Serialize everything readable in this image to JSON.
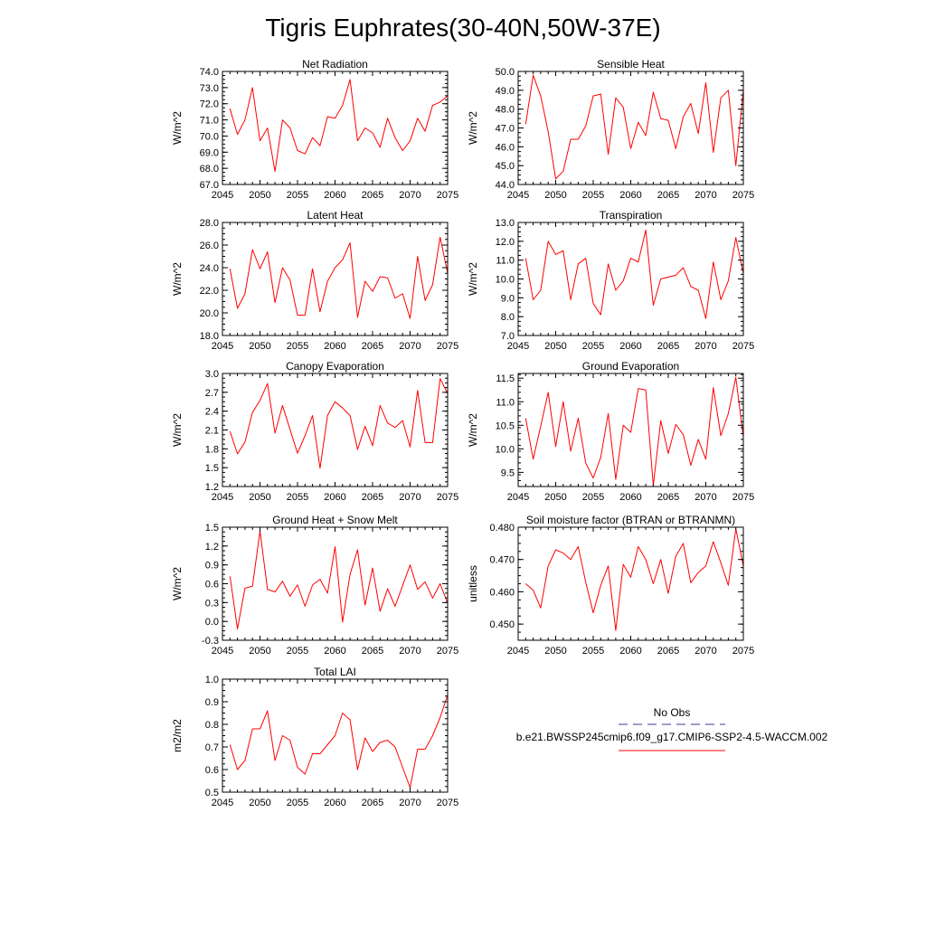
{
  "title": "Tigris Euphrates(30-40N,50W-37E)",
  "legend": {
    "obs_label": "No Obs",
    "case_label": "b.e21.BWSSP245cmip6.f09_g17.CMIP6-SSP2-4.5-WACCM.002",
    "obs_color": "#3a3a8c",
    "case_color": "#ff0000"
  },
  "chart_data": [
    {
      "type": "line",
      "title": "Net Radiation",
      "ylabel": "W/m^2",
      "xlim": [
        2045,
        2075
      ],
      "ylim": [
        67.0,
        74.0
      ],
      "yticks": [
        67.0,
        68.0,
        69.0,
        70.0,
        71.0,
        72.0,
        73.0,
        74.0
      ],
      "ytick_labels": [
        "67.0",
        "68.0",
        "69.0",
        "70.0",
        "71.0",
        "72.0",
        "73.0",
        "74.0"
      ],
      "xticks": [
        2045,
        2050,
        2055,
        2060,
        2065,
        2070,
        2075
      ],
      "x": [
        2046,
        2047,
        2048,
        2049,
        2050,
        2051,
        2052,
        2053,
        2054,
        2055,
        2056,
        2057,
        2058,
        2059,
        2060,
        2061,
        2062,
        2063,
        2064,
        2065,
        2066,
        2067,
        2068,
        2069,
        2070,
        2071,
        2072,
        2073,
        2074,
        2075
      ],
      "series": [
        {
          "values": [
            71.7,
            70.1,
            71.0,
            73.0,
            69.7,
            70.5,
            67.8,
            71.0,
            70.5,
            69.1,
            68.9,
            69.9,
            69.4,
            71.2,
            71.1,
            71.9,
            73.5,
            69.7,
            70.5,
            70.2,
            69.3,
            71.1,
            69.9,
            69.1,
            69.7,
            71.1,
            70.3,
            71.9,
            72.1,
            72.5
          ]
        }
      ]
    },
    {
      "type": "line",
      "title": "Sensible Heat",
      "ylabel": "W/m^2",
      "xlim": [
        2045,
        2075
      ],
      "ylim": [
        44.0,
        50.0
      ],
      "yticks": [
        44.0,
        45.0,
        46.0,
        47.0,
        48.0,
        49.0,
        50.0
      ],
      "ytick_labels": [
        "44.0",
        "45.0",
        "46.0",
        "47.0",
        "48.0",
        "49.0",
        "50.0"
      ],
      "xticks": [
        2045,
        2050,
        2055,
        2060,
        2065,
        2070,
        2075
      ],
      "x": [
        2046,
        2047,
        2048,
        2049,
        2050,
        2051,
        2052,
        2053,
        2054,
        2055,
        2056,
        2057,
        2058,
        2059,
        2060,
        2061,
        2062,
        2063,
        2064,
        2065,
        2066,
        2067,
        2068,
        2069,
        2070,
        2071,
        2072,
        2073,
        2074,
        2075
      ],
      "series": [
        {
          "values": [
            47.2,
            49.8,
            48.7,
            46.8,
            44.3,
            44.7,
            46.4,
            46.4,
            47.1,
            48.7,
            48.8,
            45.6,
            48.6,
            48.1,
            45.9,
            47.3,
            46.6,
            48.9,
            47.5,
            47.4,
            45.9,
            47.6,
            48.3,
            46.7,
            49.4,
            45.7,
            48.6,
            49.0,
            45.0,
            49.0
          ]
        }
      ]
    },
    {
      "type": "line",
      "title": "Latent Heat",
      "ylabel": "W/m^2",
      "xlim": [
        2045,
        2075
      ],
      "ylim": [
        18.0,
        28.0
      ],
      "yticks": [
        18.0,
        20.0,
        22.0,
        24.0,
        26.0,
        28.0
      ],
      "ytick_labels": [
        "18.0",
        "20.0",
        "22.0",
        "24.0",
        "26.0",
        "28.0"
      ],
      "xticks": [
        2045,
        2050,
        2055,
        2060,
        2065,
        2070,
        2075
      ],
      "x": [
        2046,
        2047,
        2048,
        2049,
        2050,
        2051,
        2052,
        2053,
        2054,
        2055,
        2056,
        2057,
        2058,
        2059,
        2060,
        2061,
        2062,
        2063,
        2064,
        2065,
        2066,
        2067,
        2068,
        2069,
        2070,
        2071,
        2072,
        2073,
        2074,
        2075
      ],
      "series": [
        {
          "values": [
            23.9,
            20.4,
            21.7,
            25.6,
            23.9,
            25.4,
            20.9,
            24.0,
            22.9,
            19.8,
            19.8,
            23.9,
            20.1,
            22.8,
            24.0,
            24.7,
            26.2,
            19.6,
            22.8,
            21.9,
            23.2,
            23.1,
            21.3,
            21.7,
            19.5,
            25.0,
            21.1,
            22.5,
            26.7,
            23.5
          ]
        }
      ]
    },
    {
      "type": "line",
      "title": "Transpiration",
      "ylabel": "W/m^2",
      "xlim": [
        2045,
        2075
      ],
      "ylim": [
        7.0,
        13.0
      ],
      "yticks": [
        7.0,
        8.0,
        9.0,
        10.0,
        11.0,
        12.0,
        13.0
      ],
      "ytick_labels": [
        "7.0",
        "8.0",
        "9.0",
        "10.0",
        "11.0",
        "12.0",
        "13.0"
      ],
      "xticks": [
        2045,
        2050,
        2055,
        2060,
        2065,
        2070,
        2075
      ],
      "x": [
        2046,
        2047,
        2048,
        2049,
        2050,
        2051,
        2052,
        2053,
        2054,
        2055,
        2056,
        2057,
        2058,
        2059,
        2060,
        2061,
        2062,
        2063,
        2064,
        2065,
        2066,
        2067,
        2068,
        2069,
        2070,
        2071,
        2072,
        2073,
        2074,
        2075
      ],
      "series": [
        {
          "values": [
            11.1,
            8.9,
            9.4,
            12.0,
            11.3,
            11.5,
            8.9,
            10.8,
            11.1,
            8.7,
            8.1,
            10.8,
            9.4,
            9.9,
            11.1,
            10.9,
            12.6,
            8.6,
            10.0,
            10.1,
            10.2,
            10.6,
            9.6,
            9.4,
            7.9,
            10.9,
            8.9,
            9.9,
            12.2,
            10.3
          ]
        }
      ]
    },
    {
      "type": "line",
      "title": "Canopy Evaporation",
      "ylabel": "W/m^2",
      "xlim": [
        2045,
        2075
      ],
      "ylim": [
        1.2,
        3.0
      ],
      "yticks": [
        1.2,
        1.5,
        1.8,
        2.1,
        2.4,
        2.7,
        3.0
      ],
      "ytick_labels": [
        "1.2",
        "1.5",
        "1.8",
        "2.1",
        "2.4",
        "2.7",
        "3.0"
      ],
      "xticks": [
        2045,
        2050,
        2055,
        2060,
        2065,
        2070,
        2075
      ],
      "x": [
        2046,
        2047,
        2048,
        2049,
        2050,
        2051,
        2052,
        2053,
        2054,
        2055,
        2056,
        2057,
        2058,
        2059,
        2060,
        2061,
        2062,
        2063,
        2064,
        2065,
        2066,
        2067,
        2068,
        2069,
        2070,
        2071,
        2072,
        2073,
        2074,
        2075
      ],
      "series": [
        {
          "values": [
            2.08,
            1.72,
            1.91,
            2.38,
            2.57,
            2.84,
            2.05,
            2.49,
            2.11,
            1.73,
            2.01,
            2.33,
            1.49,
            2.33,
            2.55,
            2.45,
            2.33,
            1.79,
            2.16,
            1.85,
            2.49,
            2.21,
            2.14,
            2.25,
            1.83,
            2.73,
            1.9,
            1.9,
            2.92,
            2.68
          ]
        }
      ]
    },
    {
      "type": "line",
      "title": "Ground Evaporation",
      "ylabel": "W/m^2",
      "xlim": [
        2045,
        2075
      ],
      "ylim": [
        9.2,
        11.6
      ],
      "yticks": [
        9.5,
        10.0,
        10.5,
        11.0,
        11.5
      ],
      "ytick_labels": [
        "9.5",
        "10.0",
        "10.5",
        "11.0",
        "11.5"
      ],
      "xticks": [
        2045,
        2050,
        2055,
        2060,
        2065,
        2070,
        2075
      ],
      "x": [
        2046,
        2047,
        2048,
        2049,
        2050,
        2051,
        2052,
        2053,
        2054,
        2055,
        2056,
        2057,
        2058,
        2059,
        2060,
        2061,
        2062,
        2063,
        2064,
        2065,
        2066,
        2067,
        2068,
        2069,
        2070,
        2071,
        2072,
        2073,
        2074,
        2075
      ],
      "series": [
        {
          "values": [
            10.65,
            9.78,
            10.48,
            11.2,
            10.05,
            11.0,
            9.95,
            10.65,
            9.7,
            9.38,
            9.82,
            10.75,
            9.35,
            10.5,
            10.35,
            11.28,
            11.25,
            9.22,
            10.6,
            9.9,
            10.52,
            10.3,
            9.65,
            10.2,
            9.78,
            11.3,
            10.28,
            10.75,
            11.52,
            10.25
          ]
        }
      ]
    },
    {
      "type": "line",
      "title": "Ground Heat + Snow Melt",
      "ylabel": "W/m^2",
      "xlim": [
        2045,
        2075
      ],
      "ylim": [
        -0.3,
        1.5
      ],
      "yticks": [
        -0.3,
        0.0,
        0.3,
        0.6,
        0.9,
        1.2,
        1.5
      ],
      "ytick_labels": [
        "-0.3",
        "0.0",
        "0.3",
        "0.6",
        "0.9",
        "1.2",
        "1.5"
      ],
      "xticks": [
        2045,
        2050,
        2055,
        2060,
        2065,
        2070,
        2075
      ],
      "x": [
        2046,
        2047,
        2048,
        2049,
        2050,
        2051,
        2052,
        2053,
        2054,
        2055,
        2056,
        2057,
        2058,
        2059,
        2060,
        2061,
        2062,
        2063,
        2064,
        2065,
        2066,
        2067,
        2068,
        2069,
        2070,
        2071,
        2072,
        2073,
        2074,
        2075
      ],
      "series": [
        {
          "values": [
            0.72,
            -0.12,
            0.53,
            0.56,
            1.44,
            0.51,
            0.47,
            0.64,
            0.4,
            0.58,
            0.24,
            0.58,
            0.67,
            0.45,
            1.19,
            -0.01,
            0.75,
            1.14,
            0.26,
            0.85,
            0.16,
            0.52,
            0.24,
            0.57,
            0.9,
            0.51,
            0.63,
            0.37,
            0.6,
            0.29
          ]
        }
      ]
    },
    {
      "type": "line",
      "title": "Soil moisture factor (BTRAN or BTRANMN)",
      "ylabel": "unitless",
      "xlim": [
        2045,
        2075
      ],
      "ylim": [
        0.445,
        0.48
      ],
      "yticks": [
        0.45,
        0.46,
        0.47,
        0.48
      ],
      "ytick_labels": [
        "0.450",
        "0.460",
        "0.470",
        "0.480"
      ],
      "xticks": [
        2045,
        2050,
        2055,
        2060,
        2065,
        2070,
        2075
      ],
      "x": [
        2046,
        2047,
        2048,
        2049,
        2050,
        2051,
        2052,
        2053,
        2054,
        2055,
        2056,
        2057,
        2058,
        2059,
        2060,
        2061,
        2062,
        2063,
        2064,
        2065,
        2066,
        2067,
        2068,
        2069,
        2070,
        2071,
        2072,
        2073,
        2074,
        2075
      ],
      "series": [
        {
          "values": [
            0.4625,
            0.4605,
            0.455,
            0.468,
            0.473,
            0.472,
            0.47,
            0.474,
            0.463,
            0.4535,
            0.462,
            0.468,
            0.448,
            0.4685,
            0.4645,
            0.474,
            0.47,
            0.4625,
            0.47,
            0.4595,
            0.471,
            0.475,
            0.4628,
            0.466,
            0.468,
            0.4755,
            0.469,
            0.462,
            0.4795,
            0.468
          ]
        }
      ]
    },
    {
      "type": "line",
      "title": "Total LAI",
      "ylabel": "m2/m2",
      "xlim": [
        2045,
        2075
      ],
      "ylim": [
        0.5,
        1.0
      ],
      "yticks": [
        0.5,
        0.6,
        0.7,
        0.8,
        0.9,
        1.0
      ],
      "ytick_labels": [
        "0.5",
        "0.6",
        "0.7",
        "0.8",
        "0.9",
        "1.0"
      ],
      "xticks": [
        2045,
        2050,
        2055,
        2060,
        2065,
        2070,
        2075
      ],
      "x": [
        2046,
        2047,
        2048,
        2049,
        2050,
        2051,
        2052,
        2053,
        2054,
        2055,
        2056,
        2057,
        2058,
        2059,
        2060,
        2061,
        2062,
        2063,
        2064,
        2065,
        2066,
        2067,
        2068,
        2069,
        2070,
        2071,
        2072,
        2073,
        2074,
        2075
      ],
      "series": [
        {
          "values": [
            0.71,
            0.6,
            0.64,
            0.78,
            0.78,
            0.86,
            0.64,
            0.75,
            0.73,
            0.61,
            0.58,
            0.67,
            0.67,
            0.71,
            0.75,
            0.85,
            0.82,
            0.6,
            0.74,
            0.68,
            0.72,
            0.73,
            0.7,
            0.61,
            0.52,
            0.69,
            0.69,
            0.75,
            0.83,
            0.93
          ]
        }
      ]
    }
  ]
}
